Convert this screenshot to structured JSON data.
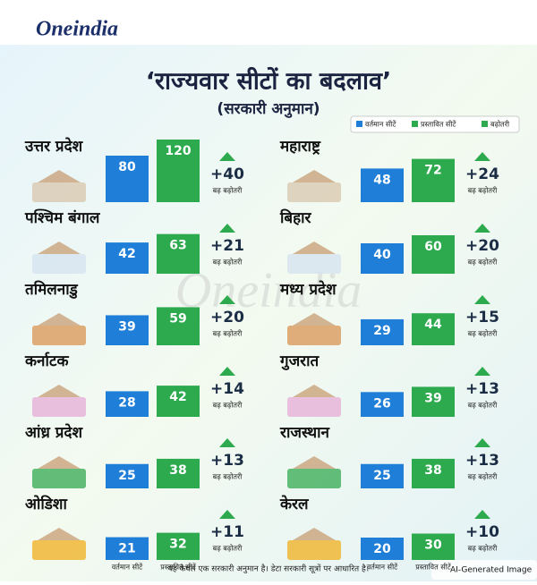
{
  "logo": "Oneindia",
  "title": "‘राज्यवार सीटों का बदलाव’",
  "subtitle": "(सरकारी अनुमान)",
  "watermark": "Oneindia",
  "legend": [
    {
      "label": "वर्तमान सीटें",
      "color": "#1f7fd8"
    },
    {
      "label": "प्रस्तावित सीटें",
      "color": "#2eaa4e"
    },
    {
      "label": "बढ़ोतरी",
      "color": "#2eaa4e"
    }
  ],
  "increase_caption": "बढ़ बढ़ोतरी",
  "bar_labels": [
    "वर्तमान सीटें",
    "प्रस्तावित सीटें"
  ],
  "states": [
    {
      "name": "उत्तर प्रदेश",
      "current": 80,
      "proposed": 120,
      "increase": {
        "value": 40,
        "label": "+40"
      }
    },
    {
      "name": "पश्चिम बंगाल",
      "current": 42,
      "proposed": 63,
      "increase": {
        "value": 21,
        "label": "+21"
      }
    },
    {
      "name": "तमिलनाडु",
      "current": 39,
      "proposed": 59,
      "increase": {
        "value": 20,
        "label": "+20"
      }
    },
    {
      "name": "कर्नाटक",
      "current": 28,
      "proposed": 42,
      "increase": {
        "value": 14,
        "label": "+14"
      }
    },
    {
      "name": "आंध्र प्रदेश",
      "current": 25,
      "proposed": 38,
      "increase": {
        "value": 13,
        "label": "+13"
      }
    },
    {
      "name": "ओडिशा",
      "current": 21,
      "proposed": 32,
      "increase": {
        "value": 11,
        "label": "+11"
      }
    },
    {
      "name": "महाराष्ट्र",
      "current": 48,
      "proposed": 72,
      "increase": {
        "value": 24,
        "label": "+24"
      }
    },
    {
      "name": "बिहार",
      "current": 40,
      "proposed": 60,
      "increase": {
        "value": 20,
        "label": "+20"
      }
    },
    {
      "name": "मध्य प्रदेश",
      "current": 29,
      "proposed": 44,
      "increase": {
        "value": 15,
        "label": "+15"
      }
    },
    {
      "name": "गुजरात",
      "current": 26,
      "proposed": 39,
      "increase": {
        "value": 13,
        "label": "+13"
      }
    },
    {
      "name": "राजस्थान",
      "current": 25,
      "proposed": 38,
      "increase": {
        "value": 13,
        "label": "+13"
      }
    },
    {
      "name": "केरल",
      "current": 20,
      "proposed": 30,
      "increase": {
        "value": 10,
        "label": "+10"
      }
    }
  ],
  "footer": "यह केवल एक सरकारी अनुमान है। डेटा सरकारी सूत्रों पर आधारित है।",
  "badge": "AI-Generated Image"
}
